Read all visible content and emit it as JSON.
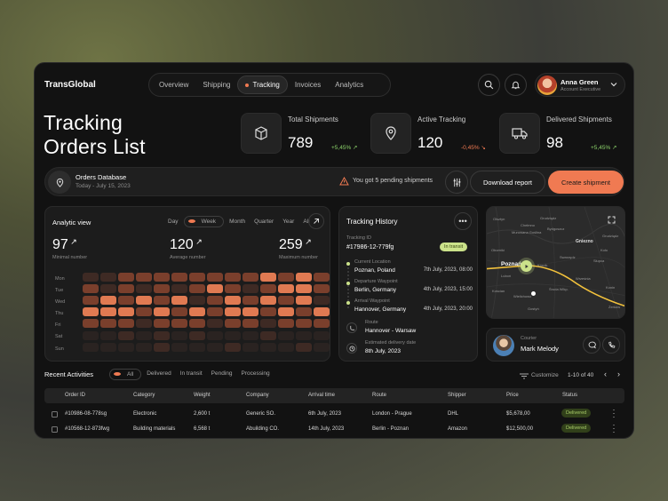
{
  "app": {
    "brand": "TransGlobal"
  },
  "nav": {
    "items": [
      "Overview",
      "Shipping",
      "Tracking",
      "Invoices",
      "Analytics"
    ],
    "active": "Tracking"
  },
  "user": {
    "name": "Anna Green",
    "role": "Account Executive"
  },
  "page": {
    "title_line1": "Tracking",
    "title_line2": "Orders List"
  },
  "stats": [
    {
      "label": "Total Shipments",
      "value": "789",
      "change": "+5,45%",
      "trend": "up",
      "icon": "box-icon"
    },
    {
      "label": "Active Tracking",
      "value": "120",
      "change": "-0,45%",
      "trend": "down",
      "icon": "map-pin-icon"
    },
    {
      "label": "Delivered Shipments",
      "value": "98",
      "change": "+5,45%",
      "trend": "up",
      "icon": "truck-icon"
    }
  ],
  "database": {
    "title": "Orders Database",
    "date": "Today - July 15, 2023",
    "notice": "You got 5 pending shipments",
    "download_label": "Download report",
    "create_label": "Create shipment"
  },
  "analytics": {
    "title": "Analytic view",
    "periods": [
      "Day",
      "Week",
      "Month",
      "Quarter",
      "Year",
      "All"
    ],
    "active_period": "Week",
    "kpis": [
      {
        "value": "97",
        "label": "Minimal number"
      },
      {
        "value": "120",
        "label": "Average number"
      },
      {
        "value": "259",
        "label": "Maximum number"
      }
    ],
    "days": [
      "Mon",
      "Tue",
      "Wed",
      "Thu",
      "Fri",
      "Sat",
      "Sun"
    ],
    "heatmap_levels": [
      [
        1,
        1,
        2,
        2,
        2,
        2,
        2,
        2,
        2,
        2,
        3,
        2,
        3,
        2,
        1
      ],
      [
        2,
        1,
        2,
        1,
        2,
        1,
        2,
        3,
        2,
        1,
        2,
        3,
        3,
        2,
        1
      ],
      [
        2,
        3,
        2,
        3,
        2,
        3,
        1,
        2,
        3,
        2,
        3,
        2,
        3,
        1,
        2
      ],
      [
        3,
        3,
        3,
        2,
        3,
        2,
        3,
        2,
        3,
        3,
        2,
        3,
        2,
        3,
        2
      ],
      [
        2,
        2,
        2,
        1,
        2,
        2,
        2,
        1,
        2,
        2,
        1,
        2,
        2,
        2,
        1
      ],
      [
        0,
        0,
        1,
        0,
        1,
        0,
        1,
        0,
        0,
        0,
        1,
        0,
        0,
        0,
        1
      ],
      [
        0,
        0,
        0,
        0,
        1,
        0,
        0,
        0,
        1,
        0,
        0,
        0,
        1,
        0,
        0
      ]
    ]
  },
  "tracking": {
    "title": "Tracking History",
    "number_label": "Tracking ID",
    "number": "#17986-12-779fg",
    "status": "In transit",
    "timeline": [
      {
        "label": "Current Location",
        "place": "Poznan, Poland",
        "time": "7th July, 2023, 08:00"
      },
      {
        "label": "Departure Waypoint",
        "place": "Berlin, Germany",
        "time": "4th July, 2023, 15:00"
      },
      {
        "label": "Arrival Waypoint",
        "place": "Hannover, Germany",
        "time": "4th July, 2023, 20:00"
      }
    ],
    "route_label": "Route",
    "route": "Hannover - Warsaw",
    "eta_label": "Estimated delivery date",
    "eta": "8th July, 2023"
  },
  "map": {
    "cities": [
      "Olsztyn",
      "Grudziądz",
      "Chełmno",
      "Bydgoszcz",
      "Grudziądz",
      "Murowana Goślina",
      "Oborniki",
      "Gniezno",
      "Poznań",
      "Kórnik",
      "Swarzędz",
      "Luboń",
      "Września",
      "Kościan",
      "Wielichowo",
      "Środa Wlkp.",
      "Gostyń",
      "Słupca",
      "Konin",
      "Koło",
      "Żerków"
    ],
    "route_color": "#f3c23c"
  },
  "courier": {
    "label": "Courier",
    "name": "Mark Melody"
  },
  "activities": {
    "title": "Recent Activities",
    "tabs": [
      "All",
      "Delivered",
      "In transit",
      "Pending",
      "Processing"
    ],
    "active_tab": "All",
    "customize": "Customize",
    "pagination": "1-10 of 40",
    "columns": [
      "Order ID",
      "Category",
      "Weight",
      "Company",
      "Arrival time",
      "Route",
      "Shipper",
      "Price",
      "Status"
    ],
    "rows": [
      [
        "#10986-08-778sg",
        "Electronic",
        "2,600 t",
        "Generic SO.",
        "6th July, 2023",
        "London - Prague",
        "DHL",
        "$5,678,00",
        "Delivered"
      ],
      [
        "#10568-12-873fwg",
        "Building materials",
        "6,568 t",
        "Abuilding CO.",
        "14th July, 2023",
        "Berlin - Poznan",
        "Amazon",
        "$12,500,00",
        "Delivered"
      ]
    ]
  },
  "colors": {
    "accent": "#f07a52",
    "positive": "#8bd16a",
    "status_green": "#cbe28a"
  }
}
